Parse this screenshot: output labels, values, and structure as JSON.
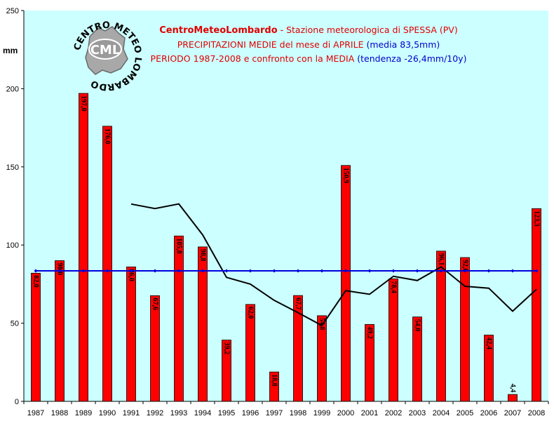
{
  "chart_data": {
    "type": "bar",
    "title_lines": [
      {
        "parts": [
          {
            "text": "CentroMeteoLombardo",
            "style": "red-bold"
          },
          {
            "text": " - Stazione meteorologica di SPESSA (PV)",
            "style": "red"
          }
        ]
      },
      {
        "parts": [
          {
            "text": "PRECIPITAZIONI MEDIE del mese di APRILE",
            "style": "red"
          },
          {
            "text": " (media 83,5mm)",
            "style": "blue"
          }
        ]
      },
      {
        "parts": [
          {
            "text": "PERIODO 1987-2008 e confronto con la MEDIA",
            "style": "red"
          },
          {
            "text": "  (tendenza -26,4mm/10y)",
            "style": "blue"
          }
        ]
      }
    ],
    "ylabel": "mm",
    "ylim": [
      0,
      250
    ],
    "yticks": [
      0,
      50,
      100,
      150,
      200,
      250
    ],
    "grid": false,
    "categories": [
      "1987",
      "1988",
      "1989",
      "1990",
      "1991",
      "1992",
      "1993",
      "1994",
      "1995",
      "1996",
      "1997",
      "1998",
      "1999",
      "2000",
      "2001",
      "2002",
      "2003",
      "2004",
      "2005",
      "2006",
      "2007",
      "2008"
    ],
    "series": [
      {
        "kind": "bar",
        "values": [
          82.0,
          90.0,
          197.0,
          176.0,
          86.0,
          67.6,
          105.8,
          98.8,
          39.2,
          62.0,
          18.8,
          67.7,
          54.8,
          150.9,
          49.2,
          78.4,
          54.0,
          96.1,
          92.0,
          42.4,
          4.4,
          123.3
        ],
        "labels": [
          "82,0",
          "90,0",
          "197,0",
          "176,0",
          "86,0",
          "67,6",
          "105,8",
          "98,8",
          "39,2",
          "62,0",
          "18,8",
          "67,7",
          "54,8",
          "150,9",
          "49,2",
          "78,4",
          "54,0",
          "96,1",
          "92,0",
          "42,4",
          "4,4",
          "123,3"
        ],
        "color": "#ff0000"
      },
      {
        "kind": "line",
        "values": [
          null,
          null,
          null,
          null,
          126.2,
          123.3,
          126.3,
          106.5,
          79.3,
          75.0,
          64.6,
          56.7,
          48.5,
          70.8,
          68.5,
          80.0,
          77.3,
          86.0,
          73.6,
          72.4,
          57.7,
          71.7
        ],
        "color": "#000000"
      },
      {
        "kind": "line",
        "values": [
          83.5,
          83.5,
          83.5,
          83.5,
          83.5,
          83.5,
          83.5,
          83.5,
          83.5,
          83.5,
          83.5,
          83.5,
          83.5,
          83.5,
          83.5,
          83.5,
          83.5,
          83.5,
          83.5,
          83.5,
          83.5,
          83.5
        ],
        "color": "#0000dd"
      }
    ],
    "colors": {
      "plot_bg": "#ccffff",
      "bar": "#ff0000",
      "mean": "#0000dd",
      "moving": "#000000"
    }
  },
  "logo": {
    "ring_text": "CENTRO METEO LOMBARDO",
    "badge": "CML"
  }
}
